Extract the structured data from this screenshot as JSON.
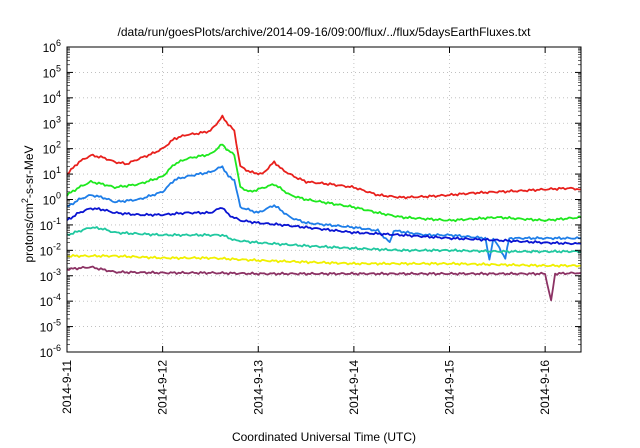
{
  "chart_data": {
    "type": "line",
    "title": "/data/run/goesPlots/archive/2014-09-16/09:00/flux/../flux/5daysEarthFluxes.txt",
    "xlabel": "Coordinated Universal Time (UTC)",
    "ylabel": "protons/cm²-s-sr-MeV",
    "ylabel_parts": {
      "pre": "protons/cm",
      "sup": "2",
      "post": "-s-sr-MeV"
    },
    "xscale": "time",
    "xlim": [
      "2014-09-11",
      "2014-09-16 09:00"
    ],
    "x_ticks": [
      "2014-9-11",
      "2014-9-12",
      "2014-9-13",
      "2014-9-14",
      "2014-9-15",
      "2014-9-16"
    ],
    "yscale": "log",
    "ylim": [
      1e-06,
      1000000.0
    ],
    "y_ticks": [
      {
        "base": "10",
        "exp": "-6"
      },
      {
        "base": "10",
        "exp": "-5"
      },
      {
        "base": "10",
        "exp": "-4"
      },
      {
        "base": "10",
        "exp": "-3"
      },
      {
        "base": "10",
        "exp": "-2"
      },
      {
        "base": "10",
        "exp": "-1"
      },
      {
        "base": "10",
        "exp": "0"
      },
      {
        "base": "10",
        "exp": "1"
      },
      {
        "base": "10",
        "exp": "2"
      },
      {
        "base": "10",
        "exp": "3"
      },
      {
        "base": "10",
        "exp": "4"
      },
      {
        "base": "10",
        "exp": "5"
      },
      {
        "base": "10",
        "exp": "6"
      }
    ],
    "grid": true,
    "legend": "none",
    "series": [
      {
        "color": "#e8201c",
        "points": [
          [
            "2014-09-11 00:00",
            10
          ],
          [
            "2014-09-11 03:00",
            30
          ],
          [
            "2014-09-11 06:00",
            55
          ],
          [
            "2014-09-11 09:00",
            45
          ],
          [
            "2014-09-11 12:00",
            30
          ],
          [
            "2014-09-11 15:00",
            25
          ],
          [
            "2014-09-11 18:00",
            40
          ],
          [
            "2014-09-11 21:00",
            60
          ],
          [
            "2014-09-12 00:00",
            100
          ],
          [
            "2014-09-12 03:00",
            250
          ],
          [
            "2014-09-12 06:00",
            350
          ],
          [
            "2014-09-12 09:00",
            400
          ],
          [
            "2014-09-12 12:00",
            500
          ],
          [
            "2014-09-12 15:00",
            1800
          ],
          [
            "2014-09-12 16:30",
            900
          ],
          [
            "2014-09-12 18:00",
            500
          ],
          [
            "2014-09-12 19:30",
            20
          ],
          [
            "2014-09-12 22:00",
            12
          ],
          [
            "2014-09-13 01:00",
            10
          ],
          [
            "2014-09-13 04:00",
            30
          ],
          [
            "2014-09-13 06:00",
            15
          ],
          [
            "2014-09-13 09:00",
            8
          ],
          [
            "2014-09-13 12:00",
            5
          ],
          [
            "2014-09-13 18:00",
            4
          ],
          [
            "2014-09-14 00:00",
            3
          ],
          [
            "2014-09-14 06:00",
            1.5
          ],
          [
            "2014-09-14 12:00",
            1.2
          ],
          [
            "2014-09-14 18:00",
            1.3
          ],
          [
            "2014-09-15 00:00",
            1.5
          ],
          [
            "2014-09-15 06:00",
            1.8
          ],
          [
            "2014-09-15 12:00",
            2
          ],
          [
            "2014-09-15 18:00",
            2.2
          ],
          [
            "2014-09-16 00:00",
            2.5
          ],
          [
            "2014-09-16 06:00",
            2.8
          ],
          [
            "2014-09-16 09:00",
            2.5
          ]
        ]
      },
      {
        "color": "#1ee81e",
        "points": [
          [
            "2014-09-11 00:00",
            1.5
          ],
          [
            "2014-09-11 03:00",
            3
          ],
          [
            "2014-09-11 06:00",
            5
          ],
          [
            "2014-09-11 09:00",
            4
          ],
          [
            "2014-09-11 12:00",
            3
          ],
          [
            "2014-09-11 18:00",
            4
          ],
          [
            "2014-09-12 00:00",
            8
          ],
          [
            "2014-09-12 03:00",
            25
          ],
          [
            "2014-09-12 06:00",
            40
          ],
          [
            "2014-09-12 09:00",
            50
          ],
          [
            "2014-09-12 12:00",
            60
          ],
          [
            "2014-09-12 15:00",
            150
          ],
          [
            "2014-09-12 16:30",
            80
          ],
          [
            "2014-09-12 18:00",
            60
          ],
          [
            "2014-09-12 19:30",
            3
          ],
          [
            "2014-09-12 22:00",
            2
          ],
          [
            "2014-09-13 04:00",
            4
          ],
          [
            "2014-09-13 08:00",
            1.5
          ],
          [
            "2014-09-13 12:00",
            1
          ],
          [
            "2014-09-14 00:00",
            0.5
          ],
          [
            "2014-09-14 06:00",
            0.3
          ],
          [
            "2014-09-14 12:00",
            0.2
          ],
          [
            "2014-09-15 00:00",
            0.15
          ],
          [
            "2014-09-15 12:00",
            0.2
          ],
          [
            "2014-09-16 00:00",
            0.15
          ],
          [
            "2014-09-16 09:00",
            0.2
          ]
        ]
      },
      {
        "color": "#1e7ee8",
        "points": [
          [
            "2014-09-11 00:00",
            0.5
          ],
          [
            "2014-09-11 03:00",
            1
          ],
          [
            "2014-09-11 06:00",
            1.5
          ],
          [
            "2014-09-11 09:00",
            1.2
          ],
          [
            "2014-09-11 12:00",
            0.8
          ],
          [
            "2014-09-11 18:00",
            1
          ],
          [
            "2014-09-12 00:00",
            2
          ],
          [
            "2014-09-12 03:00",
            6
          ],
          [
            "2014-09-12 06:00",
            8
          ],
          [
            "2014-09-12 09:00",
            10
          ],
          [
            "2014-09-12 12:00",
            12
          ],
          [
            "2014-09-12 15:00",
            20
          ],
          [
            "2014-09-12 16:30",
            8
          ],
          [
            "2014-09-12 18:00",
            6
          ],
          [
            "2014-09-12 19:30",
            0.5
          ],
          [
            "2014-09-13 00:00",
            0.3
          ],
          [
            "2014-09-13 04:00",
            0.6
          ],
          [
            "2014-09-13 08:00",
            0.2
          ],
          [
            "2014-09-13 12:00",
            0.12
          ],
          [
            "2014-09-14 00:00",
            0.08
          ],
          [
            "2014-09-14 06:00",
            0.06
          ],
          [
            "2014-09-14 09:00",
            0.02
          ],
          [
            "2014-09-14 10:00",
            0.06
          ],
          [
            "2014-09-14 18:00",
            0.04
          ],
          [
            "2014-09-15 00:00",
            0.04
          ],
          [
            "2014-09-15 09:00",
            0.03
          ],
          [
            "2014-09-15 10:00",
            0.004
          ],
          [
            "2014-09-15 11:00",
            0.03
          ],
          [
            "2014-09-15 14:00",
            0.005
          ],
          [
            "2014-09-15 15:00",
            0.03
          ],
          [
            "2014-09-16 00:00",
            0.03
          ],
          [
            "2014-09-16 09:00",
            0.03
          ]
        ]
      },
      {
        "color": "#0a14d2",
        "points": [
          [
            "2014-09-11 00:00",
            0.15
          ],
          [
            "2014-09-11 03:00",
            0.3
          ],
          [
            "2014-09-11 06:00",
            0.45
          ],
          [
            "2014-09-11 09:00",
            0.4
          ],
          [
            "2014-09-11 12:00",
            0.3
          ],
          [
            "2014-09-11 18:00",
            0.25
          ],
          [
            "2014-09-12 00:00",
            0.25
          ],
          [
            "2014-09-12 06:00",
            0.3
          ],
          [
            "2014-09-12 12:00",
            0.3
          ],
          [
            "2014-09-12 15:00",
            0.5
          ],
          [
            "2014-09-12 16:30",
            0.25
          ],
          [
            "2014-09-12 19:30",
            0.15
          ],
          [
            "2014-09-13 00:00",
            0.12
          ],
          [
            "2014-09-13 06:00",
            0.1
          ],
          [
            "2014-09-13 12:00",
            0.08
          ],
          [
            "2014-09-14 00:00",
            0.05
          ],
          [
            "2014-09-14 12:00",
            0.04
          ],
          [
            "2014-09-15 00:00",
            0.03
          ],
          [
            "2014-09-15 12:00",
            0.025
          ],
          [
            "2014-09-16 00:00",
            0.02
          ],
          [
            "2014-09-16 09:00",
            0.018
          ]
        ]
      },
      {
        "color": "#20c8a0",
        "points": [
          [
            "2014-09-11 00:00",
            0.04
          ],
          [
            "2014-09-11 06:00",
            0.08
          ],
          [
            "2014-09-11 09:00",
            0.07
          ],
          [
            "2014-09-11 12:00",
            0.05
          ],
          [
            "2014-09-12 00:00",
            0.04
          ],
          [
            "2014-09-12 06:00",
            0.04
          ],
          [
            "2014-09-12 15:00",
            0.04
          ],
          [
            "2014-09-12 18:00",
            0.025
          ],
          [
            "2014-09-13 00:00",
            0.02
          ],
          [
            "2014-09-13 12:00",
            0.015
          ],
          [
            "2014-09-14 00:00",
            0.012
          ],
          [
            "2014-09-14 12:00",
            0.01
          ],
          [
            "2014-09-15 00:00",
            0.01
          ],
          [
            "2014-09-15 12:00",
            0.009
          ],
          [
            "2014-09-16 00:00",
            0.009
          ],
          [
            "2014-09-16 09:00",
            0.009
          ]
        ]
      },
      {
        "color": "#f0f000",
        "points": [
          [
            "2014-09-11 00:00",
            0.006
          ],
          [
            "2014-09-11 12:00",
            0.006
          ],
          [
            "2014-09-12 00:00",
            0.005
          ],
          [
            "2014-09-12 12:00",
            0.005
          ],
          [
            "2014-09-13 00:00",
            0.004
          ],
          [
            "2014-09-14 00:00",
            0.003
          ],
          [
            "2014-09-15 00:00",
            0.003
          ],
          [
            "2014-09-16 00:00",
            0.0025
          ],
          [
            "2014-09-16 09:00",
            0.0025
          ]
        ]
      },
      {
        "color": "#8c3264",
        "points": [
          [
            "2014-09-11 00:00",
            0.0018
          ],
          [
            "2014-09-11 06:00",
            0.0022
          ],
          [
            "2014-09-11 12:00",
            0.0014
          ],
          [
            "2014-09-12 00:00",
            0.0013
          ],
          [
            "2014-09-12 12:00",
            0.0013
          ],
          [
            "2014-09-13 00:00",
            0.0012
          ],
          [
            "2014-09-14 00:00",
            0.0012
          ],
          [
            "2014-09-15 00:00",
            0.0012
          ],
          [
            "2014-09-16 00:00",
            0.0012
          ],
          [
            "2014-09-16 01:30",
            0.0001
          ],
          [
            "2014-09-16 02:30",
            0.0012
          ],
          [
            "2014-09-16 09:00",
            0.0013
          ]
        ]
      }
    ]
  }
}
